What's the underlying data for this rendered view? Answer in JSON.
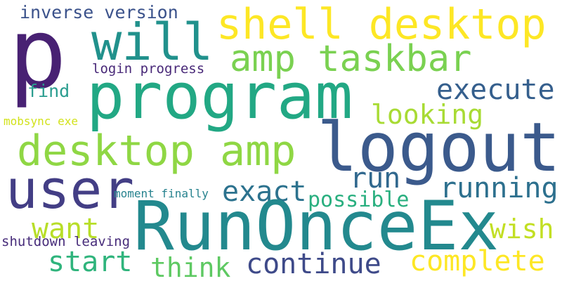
{
  "words": [
    {
      "text": "p",
      "color": "#482173"
    },
    {
      "text": "inverse version",
      "color": "#3b528b"
    },
    {
      "text": "will",
      "color": "#21918c"
    },
    {
      "text": "shell desktop",
      "color": "#fde725"
    },
    {
      "text": "amp taskbar",
      "color": "#7ad151"
    },
    {
      "text": "login progress",
      "color": "#482878"
    },
    {
      "text": "program",
      "color": "#22a884"
    },
    {
      "text": "find",
      "color": "#2a9d8f"
    },
    {
      "text": "execute",
      "color": "#355f8d"
    },
    {
      "text": "looking",
      "color": "#a8db34"
    },
    {
      "text": "mobsync exe",
      "color": "#d2e21b"
    },
    {
      "text": "logout",
      "color": "#3b5a8c"
    },
    {
      "text": "desktop amp",
      "color": "#8fd744"
    },
    {
      "text": "user",
      "color": "#433e85"
    },
    {
      "text": "run",
      "color": "#31688e"
    },
    {
      "text": "running",
      "color": "#2d708e"
    },
    {
      "text": "exact",
      "color": "#2c728e"
    },
    {
      "text": "moment finally",
      "color": "#26828e"
    },
    {
      "text": "possible",
      "color": "#29af7f"
    },
    {
      "text": "RunOnceEx",
      "color": "#23898e"
    },
    {
      "text": "want",
      "color": "#b8de29"
    },
    {
      "text": "wish",
      "color": "#c2df23"
    },
    {
      "text": "shutdown leaving",
      "color": "#472c7a"
    },
    {
      "text": "start",
      "color": "#2fb47c"
    },
    {
      "text": "think",
      "color": "#5ec962"
    },
    {
      "text": "continue",
      "color": "#3e4a89"
    },
    {
      "text": "complete",
      "color": "#fde725"
    }
  ]
}
